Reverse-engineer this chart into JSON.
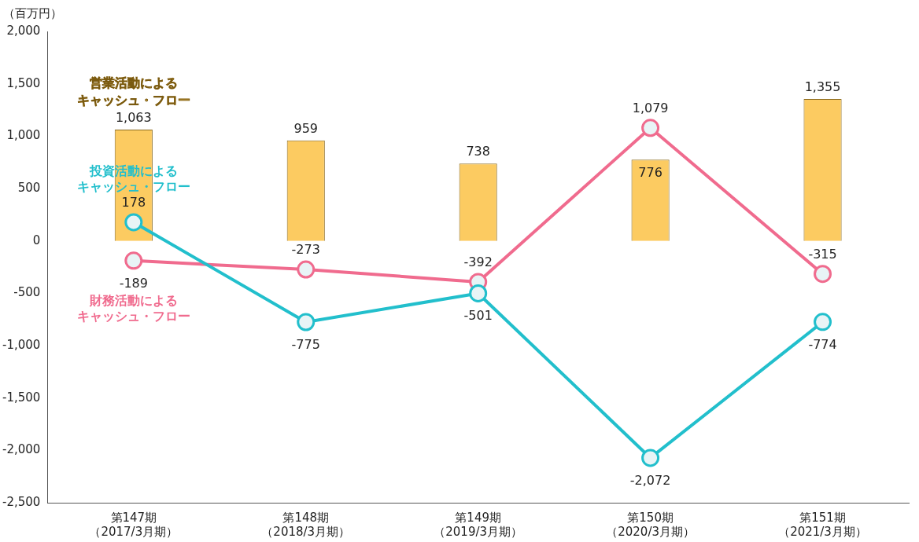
{
  "chart_data": {
    "type": "bar",
    "ylabel": "（百万円）",
    "categories": [
      "第147期（2017/3月期）",
      "第148期（2018/3月期）",
      "第149期（2019/3月期）",
      "第150期（2020/3月期）",
      "第151期（2021/3月期）"
    ],
    "series": [
      {
        "name": "営業活動によるキャッシュ・フロー",
        "color": "#fccb61",
        "values": [
          1063,
          959,
          738,
          776,
          1355
        ],
        "value_labels": [
          "1,063",
          "959",
          "738",
          "776",
          "1,355"
        ]
      },
      {
        "name": "投資活動によるキャッシュ・フロー",
        "type": "line",
        "color": "#22bfcc",
        "values": [
          178,
          -775,
          -501,
          -2072,
          -774
        ],
        "value_labels": [
          "178",
          "-775",
          "-501",
          "-2,072",
          "-774"
        ]
      },
      {
        "name": "財務活動によるキャッシュ・フロー",
        "type": "line",
        "color": "#f06b8e",
        "values": [
          -189,
          -273,
          -392,
          1079,
          -315
        ],
        "value_labels": [
          "-189",
          "-273",
          "-392",
          "1,079",
          "-315"
        ]
      }
    ],
    "ylim": [
      -2500,
      2000
    ],
    "yticks": [
      {
        "value": -2500,
        "label": "-2,500"
      },
      {
        "value": -2000,
        "label": "-2,000"
      },
      {
        "value": -1500,
        "label": "-1,500"
      },
      {
        "value": -1000,
        "label": "-1,000"
      },
      {
        "value": -500,
        "label": "-500"
      },
      {
        "value": 0,
        "label": "0"
      },
      {
        "value": 500,
        "label": "500"
      },
      {
        "value": 1000,
        "label": "1,000"
      },
      {
        "value": 1500,
        "label": "1,500"
      },
      {
        "value": 2000,
        "label": "2,000"
      }
    ],
    "grid": false,
    "legend": false,
    "marker": "circle",
    "line_style": "solid"
  }
}
